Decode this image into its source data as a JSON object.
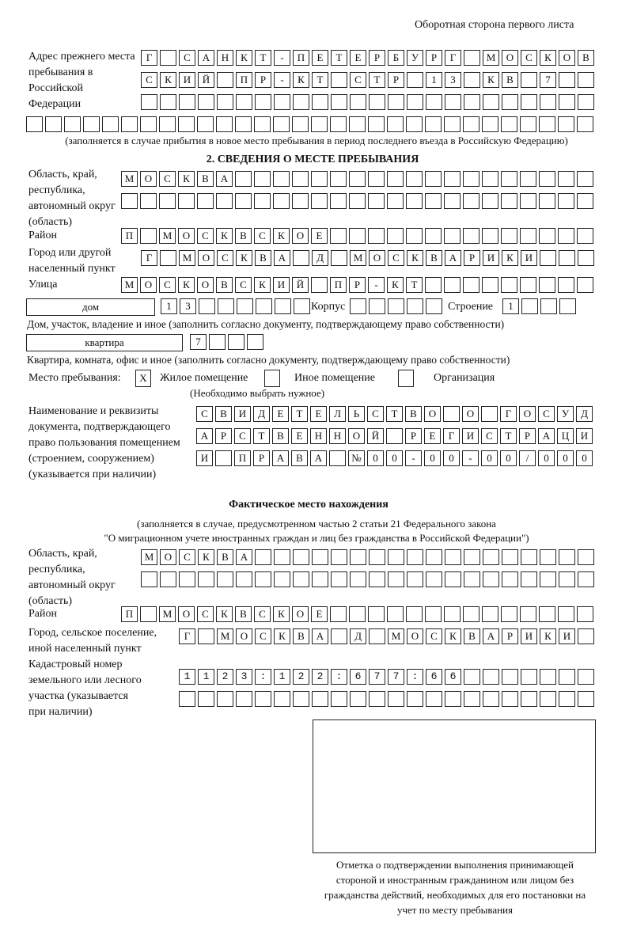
{
  "header": "Оборотная сторона первого листа",
  "prev_address": {
    "label": "Адрес прежнего места пребывания в Российской Федерации",
    "rows": [
      "Г САНКТ-ПЕТЕРБУРГ МОСКОВ",
      "СКИЙ ПР-КТ СТР 13 КВ 7",
      "",
      ""
    ],
    "note": "(заполняется в случае прибытия в новое место пребывания в период последнего въезда в Российскую Федерацию)"
  },
  "section2": {
    "title": "2. СВЕДЕНИЯ О МЕСТЕ ПРЕБЫВАНИЯ",
    "region_label": "Область, край, республика, автономный округ (область)",
    "region_rows": [
      "МОСКВА",
      ""
    ],
    "district_label": "Район",
    "district": "П МОСКВСКОЕ",
    "city_label": "Город или другой населенный пункт",
    "city": "Г МОСКВА Д МОСКВАРИКИ",
    "street_label": "Улица",
    "street": "МОСКОВСКИЙ ПР-КТ",
    "house_type": "дом",
    "house": "13",
    "korpus_label": "Корпус",
    "korpus": "",
    "building_label": "Строение",
    "building": "1",
    "house_note": "Дом, участок, владение и иное (заполнить согласно документу, подтверждающему право собственности)",
    "flat_type": "квартира",
    "flat": "7",
    "flat_note": "Квартира, комната, офис и иное (заполнить согласно документу, подтверждающему право собственности)",
    "place_label": "Место пребывания:",
    "options": [
      {
        "label": "Жилое помещение",
        "mark": "X"
      },
      {
        "label": "Иное помещение",
        "mark": ""
      },
      {
        "label": "Организация",
        "mark": ""
      }
    ],
    "place_note": "(Необходимо выбрать нужное)",
    "doc_label": "Наименование и реквизиты документа, подтверждающего право пользования помещением (строением, сооружением) (указывается при наличии)",
    "doc_rows": [
      "СВИДЕТЕЛЬСТВО О ГОСУД",
      "АРСТВЕННОЙ РЕГИСТРАЦИ",
      "И ПРАВА №00-00-00/000"
    ]
  },
  "actual": {
    "title": "Фактическое место нахождения",
    "note1": "(заполняется в случае, предусмотренном частью 2 статьи 21 Федерального закона",
    "note2": "\"О миграционном учете иностранных граждан и лиц без гражданства в Российской Федерации\")",
    "region_label": "Область, край, республика, автономный округ (область)",
    "region_rows": [
      "МОСКВА",
      ""
    ],
    "district_label": "Район",
    "district": "П МОСКВСКОЕ",
    "city_label": "Город, сельское поселение, иной населенный пункт",
    "city": "Г МОСКВА Д МОСКВАРИКИ",
    "cadastre_label": "Кадастровый номер земельного или лесного участка (указывается при наличии)",
    "cadastre_rows": [
      "1123:122:677:66",
      ""
    ]
  },
  "stamp_caption": "Отметка о подтверждении выполнения принимающей стороной и иностранным гражданином или лицом без гражданства действий, необходимых для его постановки на учет по месту пребывания"
}
